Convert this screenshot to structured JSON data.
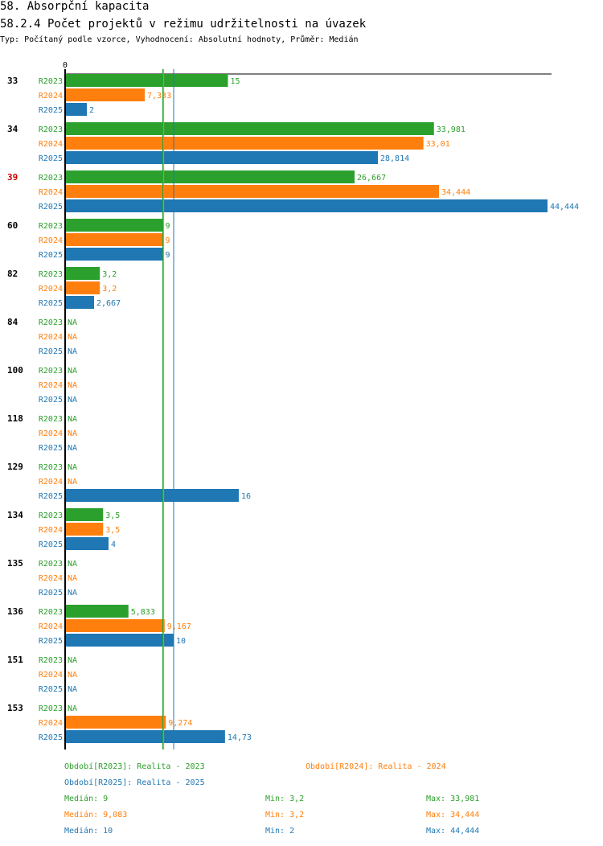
{
  "header": {
    "title": "58. Absorpční kapacita",
    "subtitle": "58.2.4 Počet projektů v režimu udržitelnosti na úvazek",
    "meta": "Typ: Počítaný podle vzorce, Vyhodnocení: Absolutní hodnoty, Průměr: Medián"
  },
  "colors": {
    "R2023": "#2ca02c",
    "R2024": "#ff7f0e",
    "R2025": "#1f77b4",
    "highlight": "#cc0000"
  },
  "chart_data": {
    "type": "bar",
    "orientation": "horizontal",
    "axis_zero_label": "0",
    "xlim": [
      0,
      44.444
    ],
    "categories": [
      "33",
      "34",
      "39",
      "60",
      "82",
      "84",
      "100",
      "118",
      "129",
      "134",
      "135",
      "136",
      "151",
      "153"
    ],
    "highlighted_category": "39",
    "series": [
      {
        "name": "R2023",
        "values": [
          15,
          33.981,
          26.667,
          9,
          3.2,
          null,
          null,
          null,
          null,
          3.5,
          null,
          5.833,
          null,
          null
        ],
        "labels": [
          "15",
          "33,981",
          "26,667",
          "9",
          "3,2",
          "NA",
          "NA",
          "NA",
          "NA",
          "3,5",
          "NA",
          "5,833",
          "NA",
          "NA"
        ]
      },
      {
        "name": "R2024",
        "values": [
          7.333,
          33.01,
          34.444,
          9,
          3.2,
          null,
          null,
          null,
          null,
          3.5,
          null,
          9.167,
          null,
          9.274
        ],
        "labels": [
          "7,333",
          "33,01",
          "34,444",
          "9",
          "3,2",
          "NA",
          "NA",
          "NA",
          "NA",
          "3,5",
          "NA",
          "9,167",
          "NA",
          "9,274"
        ]
      },
      {
        "name": "R2025",
        "values": [
          2,
          28.814,
          44.444,
          9,
          2.667,
          null,
          null,
          null,
          16,
          4,
          null,
          10,
          null,
          14.73
        ],
        "labels": [
          "2",
          "28,814",
          "44,444",
          "9",
          "2,667",
          "NA",
          "NA",
          "NA",
          "16",
          "4",
          "NA",
          "10",
          "NA",
          "14,73"
        ]
      }
    ],
    "median_lines": {
      "R2023": 9,
      "R2024": 9.083,
      "R2025": 10
    }
  },
  "legend": {
    "periods": [
      {
        "series": "R2023",
        "text": "Období[R2023]: Realita - 2023"
      },
      {
        "series": "R2024",
        "text": "Období[R2024]: Realita - 2024"
      },
      {
        "series": "R2025",
        "text": "Období[R2025]: Realita - 2025"
      }
    ],
    "stats": [
      {
        "series": "R2023",
        "median": "Medián: 9",
        "min": "Min: 3,2",
        "max": "Max: 33,981"
      },
      {
        "series": "R2024",
        "median": "Medián: 9,083",
        "min": "Min: 3,2",
        "max": "Max: 34,444"
      },
      {
        "series": "R2025",
        "median": "Medián: 10",
        "min": "Min: 2",
        "max": "Max: 44,444"
      }
    ]
  }
}
